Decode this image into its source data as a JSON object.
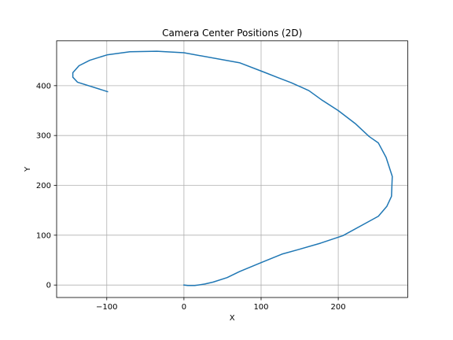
{
  "chart_data": {
    "type": "line",
    "title": "Camera Center Positions (2D)",
    "xlabel": "X",
    "ylabel": "Y",
    "xlim": [
      -165,
      290
    ],
    "ylim": [
      -25,
      490
    ],
    "xticks": [
      -100,
      0,
      100,
      200
    ],
    "xtick_labels": [
      "−100",
      "0",
      "100",
      "200"
    ],
    "yticks": [
      0,
      100,
      200,
      300,
      400
    ],
    "ytick_labels": [
      "0",
      "100",
      "200",
      "300",
      "400"
    ],
    "grid": true,
    "series": [
      {
        "color": "#1f77b4",
        "x": [
          0,
          5,
          14,
          27,
          38,
          56,
          72,
          100,
          127,
          148,
          177,
          206,
          239,
          252,
          263,
          269,
          270,
          262,
          252,
          240,
          222,
          200,
          178,
          162,
          139,
          122,
          104,
          72,
          0,
          -35,
          -70,
          -99,
          -122,
          -136,
          -144,
          -144,
          -138,
          -99
        ],
        "y": [
          0,
          -1,
          -1,
          2,
          6,
          15,
          27,
          45,
          62,
          71,
          84,
          99,
          127,
          138,
          158,
          178,
          218,
          256,
          285,
          298,
          324,
          350,
          372,
          390,
          406,
          416,
          427,
          446,
          466,
          469,
          468,
          462,
          451,
          440,
          426,
          417,
          407,
          388
        ]
      }
    ]
  }
}
